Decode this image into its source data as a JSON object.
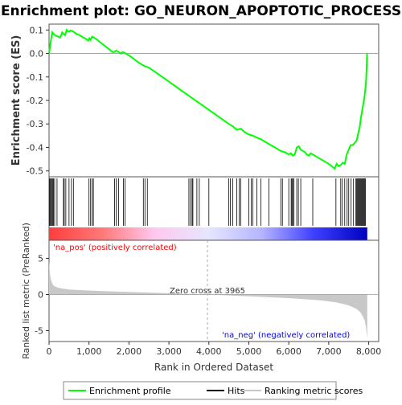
{
  "chart_data": {
    "title": "Enrichment plot: GO_NEURON_APOPTOTIC_PROCESS",
    "type": "line",
    "es_panel": {
      "ylabel": "Enrichment score (ES)",
      "yticks": [
        0.1,
        0.0,
        -0.1,
        -0.2,
        -0.3,
        -0.4,
        -0.5
      ],
      "ytick_labels": [
        "0.1",
        "0.0",
        "-0.1",
        "-0.2",
        "-0.3",
        "-0.4",
        "-0.5"
      ],
      "ylim": [
        -0.525,
        0.125
      ],
      "series": [
        {
          "name": "Enrichment profile",
          "color": "#00ff00",
          "x": [
            0,
            50,
            80,
            130,
            180,
            280,
            330,
            360,
            400,
            440,
            470,
            500,
            540,
            600,
            650,
            700,
            760,
            840,
            920,
            980,
            1010,
            1040,
            1080,
            1120,
            1180,
            1300,
            1450,
            1600,
            1680,
            1720,
            1760,
            1800,
            1840,
            1900,
            1960,
            2100,
            2250,
            2400,
            2500,
            3000,
            3500,
            4000,
            4500,
            4600,
            4700,
            4800,
            4900,
            5000,
            5100,
            5200,
            5300,
            5400,
            5500,
            5600,
            5700,
            5800,
            5900,
            6000,
            6050,
            6100,
            6150,
            6200,
            6250,
            6300,
            6350,
            6400,
            6450,
            6500,
            6550,
            6600,
            6700,
            7000,
            7150,
            7200,
            7250,
            7300,
            7350,
            7400,
            7450,
            7500,
            7550,
            7600,
            7650,
            7700,
            7750,
            7780,
            7800,
            7830,
            7860,
            7890,
            7910,
            7930,
            7945,
            7960
          ],
          "y": [
            0.0,
            0.06,
            0.09,
            0.08,
            0.075,
            0.068,
            0.09,
            0.085,
            0.078,
            0.1,
            0.095,
            0.092,
            0.098,
            0.094,
            0.088,
            0.082,
            0.078,
            0.07,
            0.062,
            0.055,
            0.065,
            0.058,
            0.072,
            0.068,
            0.062,
            0.045,
            0.025,
            0.005,
            0.012,
            0.008,
            0.004,
            0.0,
            0.006,
            0.002,
            -0.004,
            -0.02,
            -0.04,
            -0.055,
            -0.06,
            -0.12,
            -0.18,
            -0.24,
            -0.3,
            -0.31,
            -0.325,
            -0.32,
            -0.335,
            -0.345,
            -0.35,
            -0.358,
            -0.365,
            -0.375,
            -0.385,
            -0.395,
            -0.405,
            -0.415,
            -0.42,
            -0.43,
            -0.425,
            -0.435,
            -0.43,
            -0.4,
            -0.395,
            -0.41,
            -0.415,
            -0.42,
            -0.43,
            -0.435,
            -0.425,
            -0.43,
            -0.44,
            -0.47,
            -0.49,
            -0.47,
            -0.48,
            -0.475,
            -0.465,
            -0.47,
            -0.43,
            -0.41,
            -0.39,
            -0.39,
            -0.38,
            -0.37,
            -0.33,
            -0.31,
            -0.28,
            -0.25,
            -0.22,
            -0.19,
            -0.16,
            -0.13,
            -0.08,
            0.0
          ]
        }
      ]
    },
    "hits": [
      10,
      30,
      55,
      75,
      95,
      110,
      140,
      200,
      360,
      380,
      420,
      500,
      560,
      610,
      1000,
      1040,
      1080,
      1110,
      1640,
      1680,
      1740,
      1860,
      1900,
      2360,
      2400,
      2460,
      3500,
      3540,
      3580,
      3600,
      3700,
      3760,
      4000,
      4500,
      4540,
      4600,
      4700,
      4760,
      4800,
      5000,
      5060,
      5100,
      5200,
      5300,
      5500,
      5800,
      5840,
      6000,
      6060,
      6080,
      6100,
      6130,
      6200,
      6240,
      6300,
      6600,
      7180,
      7300,
      7340,
      7400,
      7460,
      7500,
      7560,
      7620,
      7680,
      7700,
      7720,
      7740,
      7760,
      7780,
      7800,
      7820,
      7840,
      7860,
      7880,
      7900,
      7920
    ],
    "ranked_panel": {
      "ylabel": "Ranked list metric (PreRanked)",
      "yticks": [
        5,
        0,
        -5
      ],
      "ytick_labels": [
        "5",
        "0",
        "-5"
      ],
      "ylim": [
        -6.5,
        7.5
      ],
      "x": [
        0,
        15,
        30,
        50,
        80,
        120,
        200,
        300,
        500,
        800,
        1200,
        2000,
        3000,
        3965,
        5000,
        6000,
        6800,
        7200,
        7500,
        7700,
        7800,
        7850,
        7900,
        7930,
        7950,
        7965
      ],
      "values": [
        4.6,
        3.4,
        2.6,
        2.0,
        1.5,
        1.2,
        1.0,
        0.85,
        0.7,
        0.6,
        0.5,
        0.35,
        0.18,
        0.0,
        -0.25,
        -0.5,
        -0.8,
        -1.1,
        -1.5,
        -2.0,
        -2.5,
        -3.0,
        -3.6,
        -4.4,
        -5.4,
        -6.1
      ],
      "fill_color": "#c8c8c8",
      "zero_cross_label": "Zero cross at 3965",
      "zero_cross_x": 3965,
      "pos_label": "'na_pos' (positively correlated)",
      "neg_label": "'na_neg' (negatively correlated)",
      "pos_label_color": "#ff0000",
      "neg_label_color": "#0000ff"
    },
    "x_axis": {
      "xlabel": "Rank in Ordered Dataset",
      "xlim": [
        0,
        8250
      ],
      "xticks": [
        0,
        1000,
        2000,
        3000,
        4000,
        5000,
        6000,
        7000,
        8000
      ],
      "xtick_labels": [
        "0",
        "1,000",
        "2,000",
        "3,000",
        "4,000",
        "5,000",
        "6,000",
        "7,000",
        "8,000"
      ],
      "max_rank": 7965
    },
    "color_bar": {
      "stops": [
        0,
        0.17,
        0.33,
        0.5,
        0.67,
        0.83,
        1
      ],
      "colors": [
        "#ff3d3d",
        "#ff7a7a",
        "#ffc8ee",
        "#e6e6ff",
        "#b4b4ff",
        "#4040ff",
        "#0000c0"
      ]
    },
    "legend": {
      "placement": "bottom",
      "entries": [
        {
          "label": "Enrichment profile",
          "color": "#00ff00"
        },
        {
          "label": "Hits",
          "color": "#000000"
        },
        {
          "label": "Ranking metric scores",
          "color": "#c8c8c8"
        }
      ]
    }
  }
}
